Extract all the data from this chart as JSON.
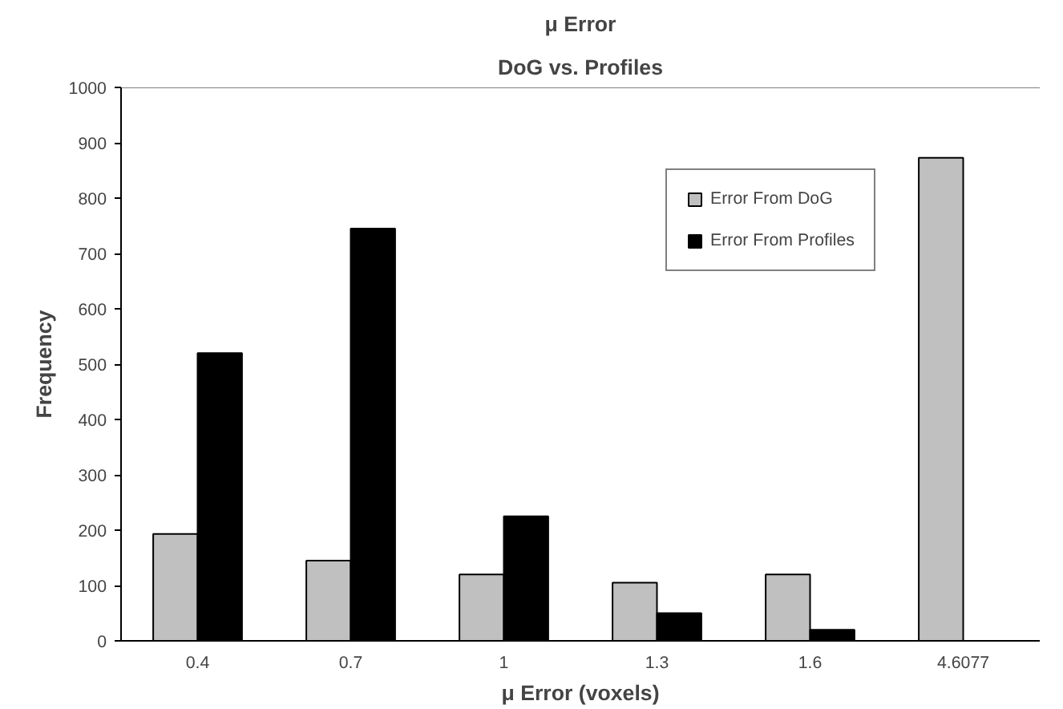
{
  "chart_data": {
    "type": "bar",
    "title": "μ Error",
    "subtitle": "DoG vs. Profiles",
    "xlabel": "μ Error (voxels)",
    "ylabel": "Frequency",
    "categories": [
      "0.4",
      "0.7",
      "1",
      "1.3",
      "1.6",
      "4.6077"
    ],
    "series": [
      {
        "name": "Error From DoG",
        "color": "#c0c0c0",
        "values": [
          193,
          145,
          120,
          105,
          120,
          873
        ]
      },
      {
        "name": "Error From Profiles",
        "color": "#000000",
        "values": [
          520,
          745,
          225,
          50,
          20,
          null
        ]
      }
    ],
    "ylim": [
      0,
      1000
    ],
    "yticks": [
      0,
      100,
      200,
      300,
      400,
      500,
      600,
      700,
      800,
      900,
      1000
    ],
    "grid": false,
    "legend": "top right"
  }
}
